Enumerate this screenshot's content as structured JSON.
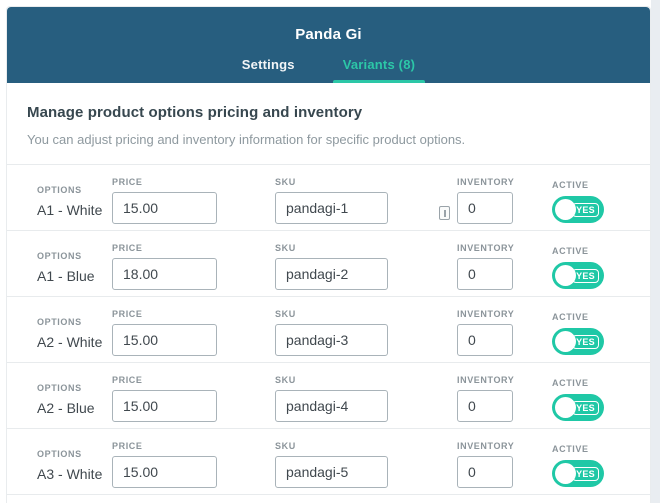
{
  "colors": {
    "header_bg": "#275e7f",
    "accent_teal": "#2cc7a7",
    "toggle_teal": "#1fc8a6",
    "heading_text": "#37474f",
    "muted_text": "#8e999f"
  },
  "header": {
    "title": "Panda Gi",
    "tabs": [
      {
        "label": "Settings",
        "active": false
      },
      {
        "label": "Variants (8)",
        "active": true
      }
    ]
  },
  "main": {
    "heading": "Manage product options pricing and inventory",
    "description": "You can adjust pricing and inventory information for specific product options."
  },
  "table": {
    "labels": {
      "options": "OPTIONS",
      "price": "PRICE",
      "sku": "SKU",
      "inventory": "INVENTORY",
      "active": "ACTIVE"
    },
    "toggle_on_label": "YES",
    "rows": [
      {
        "options": "A1 - White",
        "price": "15.00",
        "sku": "pandagi-1",
        "inventory": "0",
        "active": "YES",
        "sku_icon": true
      },
      {
        "options": "A1 - Blue",
        "price": "18.00",
        "sku": "pandagi-2",
        "inventory": "0",
        "active": "YES",
        "sku_icon": false
      },
      {
        "options": "A2 - White",
        "price": "15.00",
        "sku": "pandagi-3",
        "inventory": "0",
        "active": "YES",
        "sku_icon": false
      },
      {
        "options": "A2 - Blue",
        "price": "15.00",
        "sku": "pandagi-4",
        "inventory": "0",
        "active": "YES",
        "sku_icon": false
      },
      {
        "options": "A3 - White",
        "price": "15.00",
        "sku": "pandagi-5",
        "inventory": "0",
        "active": "YES",
        "sku_icon": false
      }
    ]
  }
}
